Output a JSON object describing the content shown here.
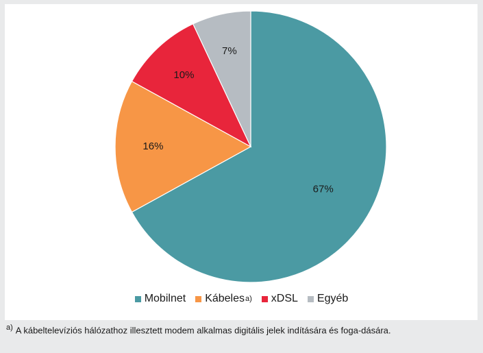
{
  "chart_data": {
    "type": "pie",
    "title": "",
    "slices": [
      {
        "label": "Mobilnet",
        "value": 67,
        "display": "67%",
        "color": "#4b9aa3"
      },
      {
        "label": "Kábeles",
        "value": 16,
        "display": "16%",
        "color": "#f79646"
      },
      {
        "label": "xDSL",
        "value": 10,
        "display": "10%",
        "color": "#e8253b"
      },
      {
        "label": "Egyéb",
        "value": 7,
        "display": "7%",
        "color": "#b6bcc2"
      }
    ],
    "start_angle": "12 o'clock",
    "direction": "clockwise",
    "legend_position": "bottom"
  },
  "legend": {
    "items": [
      {
        "label": "Mobilnet",
        "sup": ""
      },
      {
        "label": "Kábeles",
        "sup": "a)"
      },
      {
        "label": "xDSL",
        "sup": ""
      },
      {
        "label": "Egyéb",
        "sup": ""
      }
    ]
  },
  "footnote": {
    "mark": "a)",
    "text": "A kábeltelevíziós hálózathoz illesztett modem alkalmas digitális jelek indítására és foga-dására."
  }
}
